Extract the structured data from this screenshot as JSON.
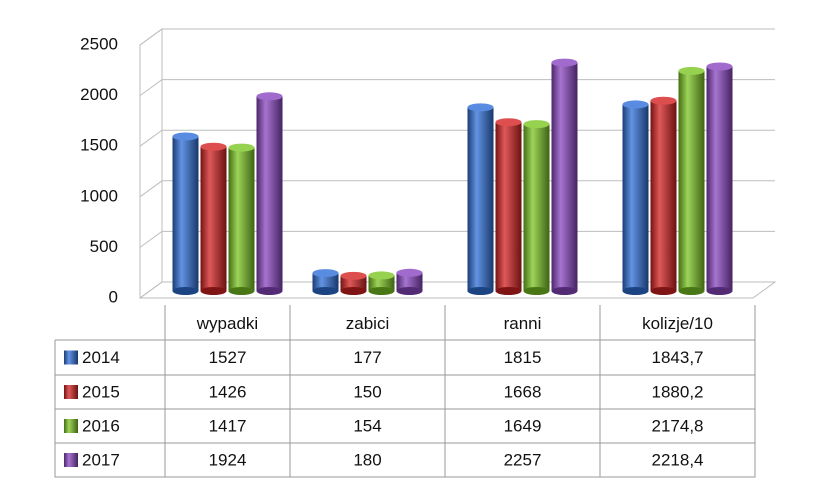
{
  "chart_data": {
    "type": "bar",
    "categories": [
      "wypadki",
      "zabici",
      "ranni",
      "kolizje/10"
    ],
    "series": [
      {
        "name": "2014",
        "color": "#2f6fd8",
        "values": [
          1527,
          177,
          1815,
          1843.7
        ],
        "value_labels": [
          "1527",
          "177",
          "1815",
          "1843,7"
        ]
      },
      {
        "name": "2015",
        "color": "#d42222",
        "values": [
          1426,
          150,
          1668,
          1880.2
        ],
        "value_labels": [
          "1426",
          "150",
          "1668",
          "1880,2"
        ]
      },
      {
        "name": "2016",
        "color": "#7cc623",
        "values": [
          1417,
          154,
          1649,
          2174.8
        ],
        "value_labels": [
          "1417",
          "154",
          "1649",
          "2174,8"
        ]
      },
      {
        "name": "2017",
        "color": "#8a46c2",
        "values": [
          1924,
          180,
          2257,
          2218.4
        ],
        "value_labels": [
          "1924",
          "180",
          "2257",
          "2218,4"
        ]
      }
    ],
    "ylim": [
      0,
      2500
    ],
    "yticks": [
      0,
      500,
      1000,
      1500,
      2000,
      2500
    ],
    "grid": true
  }
}
